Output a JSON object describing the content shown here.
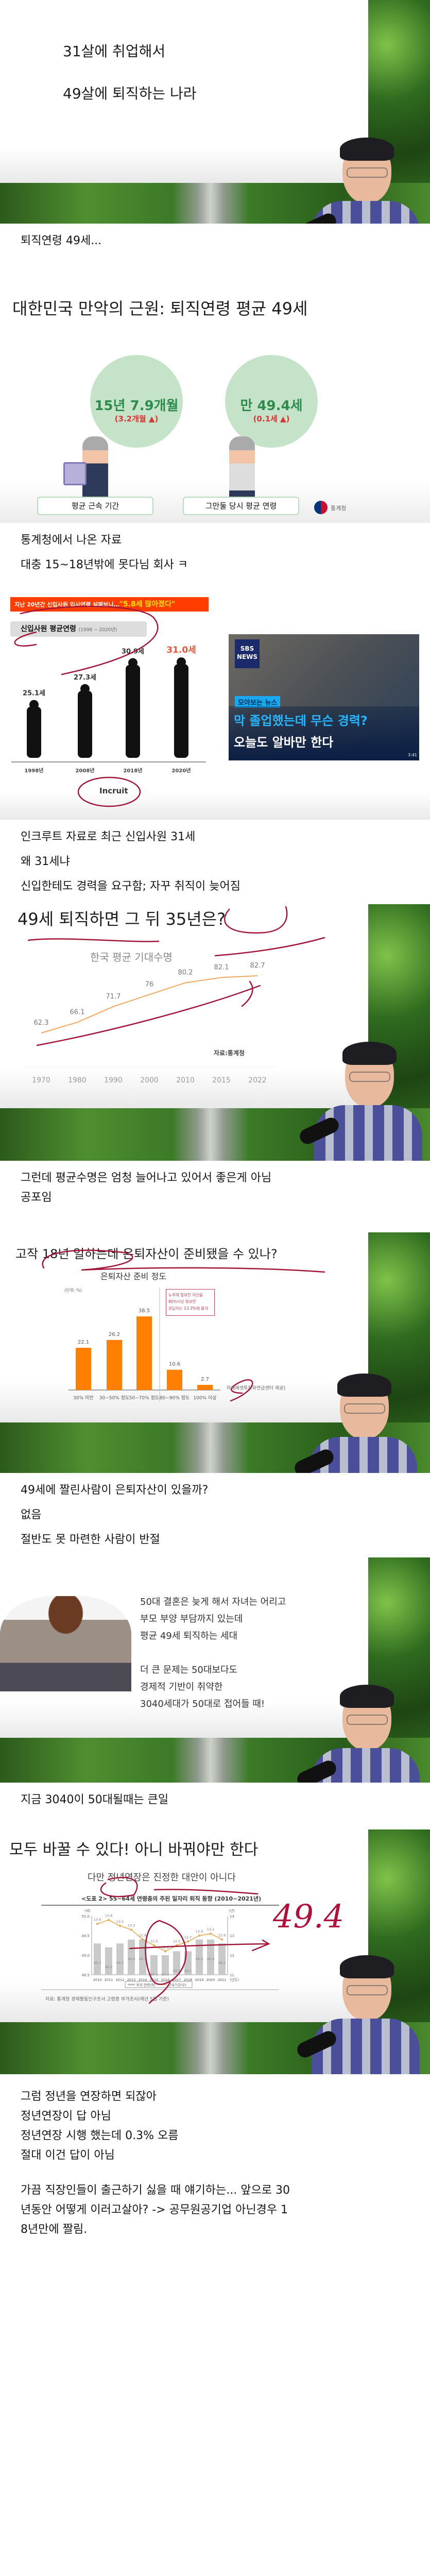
{
  "slide1": {
    "line1": "31살에 취업해서",
    "line2": "49살에 퇴직하는 나라"
  },
  "text1": "퇴직연령 49세...",
  "slide2": {
    "title": "대한민국 만악의 근원: 퇴직연령 평균 49세",
    "stat1_value": "15년 7.9개월",
    "stat1_change": "(3.2개월 ▲)",
    "stat1_label": "평균 근속 기간",
    "stat2_value": "만 49.4세",
    "stat2_change": "(0.1세 ▲)",
    "stat2_label": "그만둘 당시 평균 연령",
    "source_logo": "통계청"
  },
  "text2": [
    "통계청에서 나온 자료",
    "대충 15~18년밖에 못다님 회사 ㅋ"
  ],
  "slide3": {
    "banner": "지난 20년간 신입사원 입사연령 살펴보니…",
    "banner_quote": "\"5.8세 많아졌다\"",
    "chart_title": "신입사원 평균연령",
    "chart_range": "(1998 ~ 2020년)",
    "logo": "Incruit",
    "news_logo": "SBS NEWS",
    "news_tag": "모아보는 뉴스",
    "news_line1": "막 졸업했는데 무슨 경력?",
    "news_line2": "오늘도 알바만 한다",
    "news_duration": "3:41"
  },
  "text3": [
    "인크루트 자료로 최근 신입사원 31세",
    "왜 31세냐",
    "신입한테도 경력을 요구함; 자꾸 취직이 늦어짐"
  ],
  "slide4": {
    "title": "49세 퇴직하면 그 뒤 35년은?",
    "source": "자료:통계청"
  },
  "text4": [
    "그런데 평균수명은 엄청 늘어나고 있어서 좋은게 아님",
    "공포임"
  ],
  "slide5": {
    "title": "고작 18년 일하는데 은퇴자산이 준비됐을 수 있나?",
    "callout": [
      "노후에 필요한 자산을",
      "80%이상 확보한",
      "응답자는 13.3%에 불과"
    ],
    "source": "미래에셋투자와연금센터 제공]"
  },
  "text5": [
    "49세에 짤린사람이 은퇴자산이 있을까?",
    "없음",
    "절반도 못 마련한 사람이 반절"
  ],
  "slide6": {
    "lines": [
      "50대 결혼은 늦게 해서 자녀는 어리고",
      "부모 부양 부담까지 있는데",
      "평균 49세 퇴직하는 세대",
      "",
      "더 큰 문제는 50대보다도",
      "경제적 기반이 취약한",
      "3040세대가 50대로 접어들 때!"
    ]
  },
  "text6": "지금 3040이 50대될때는 큰일",
  "slide7": {
    "title": "모두 바꿀 수 있다! 아니 바꿔야만 한다",
    "subtitle": "다만 정년연장은 진정한 대안이 아니다",
    "handwritten": "49.4",
    "source": "자료: 통계청 경제활동인구조사 고령층 부가조사(매년 5월 기준)"
  },
  "text7": [
    "그럼 정년을 연장하면 되잖아",
    "정년연장이 답 아님",
    "정년연장 시행 했는데 0.3% 오름",
    "절대 이건 답이 아님"
  ],
  "text8": [
    "가끔 직장인들이 출근하기 싫을 때 얘기하는... 앞으로 30",
    "년동안 어떻게 이러고살아? -> 공무원공기업 아닌경우 1",
    "8년만에 짤림."
  ],
  "colors": {
    "orange": "#ff7f00",
    "green": "#2e8b4e",
    "red_ink": "#a3163a",
    "line_orange": "#f0a860"
  },
  "chart_data": [
    {
      "type": "bar",
      "title": "신입사원 평균연령",
      "subtitle": "(1998 ~ 2020년)",
      "categories": [
        "1998년",
        "2008년",
        "2018년",
        "2020년"
      ],
      "values": [
        25.1,
        27.3,
        30.9,
        31.0
      ],
      "value_labels": [
        "25.1세",
        "27.3세",
        "30.9세",
        "31.0세"
      ]
    },
    {
      "type": "line",
      "title": "한국 평균 기대수명",
      "categories": [
        "1970",
        "1980",
        "1990",
        "2000",
        "2010",
        "2015",
        "2022"
      ],
      "values": [
        62.3,
        66.1,
        71.7,
        76,
        80.2,
        82.1,
        82.7
      ],
      "value_labels": [
        "62.3",
        "66.1",
        "71.7",
        "76",
        "80.2",
        "82.1",
        "82.7"
      ]
    },
    {
      "type": "bar",
      "title": "은퇴자산 준비 정도",
      "unit": "(단위: %)",
      "categories": [
        "30% 미만",
        "30~50% 정도",
        "50~70% 정도",
        "80~90% 정도",
        "100% 이상"
      ],
      "values": [
        22.1,
        26.2,
        38.5,
        10.6,
        2.7
      ],
      "value_labels": [
        "22.1",
        "26.2",
        "38.5",
        "10.6",
        "2.7"
      ]
    },
    {
      "type": "bar",
      "title": "<도표 2> 55~64세 연령층의 주된 일자리 퇴직 동향 (2010~2021년)",
      "categories": [
        "2010",
        "2011",
        "2012",
        "2013",
        "2014",
        "2015",
        "2016",
        "2017",
        "2018",
        "2019",
        "2020",
        "2021"
      ],
      "x_unit": "(년도)",
      "y_left_unit": "(세)",
      "y_right_unit": "(년)",
      "ylim_left": [
        48.5,
        50.0
      ],
      "ylim_right": [
        11,
        14
      ],
      "left_ticks": [
        "48.5",
        "49.0",
        "49.5",
        "50.0"
      ],
      "right_ticks": [
        "11",
        "12",
        "13",
        "14"
      ],
      "series": [
        {
          "name": "퇴직 연령(좌)",
          "type": "bar",
          "values": [
            49.3,
            49.2,
            49.3,
            49.4,
            49.4,
            49.0,
            49.0,
            49.1,
            49.1,
            49.4,
            49.4,
            49.3
          ]
        },
        {
          "name": "근속기간(우)",
          "type": "line",
          "values": [
            13.6,
            13.8,
            13.5,
            13.3,
            12.8,
            12.5,
            12.2,
            12.5,
            12.7,
            13.0,
            13.1,
            12.8
          ]
        }
      ]
    }
  ]
}
